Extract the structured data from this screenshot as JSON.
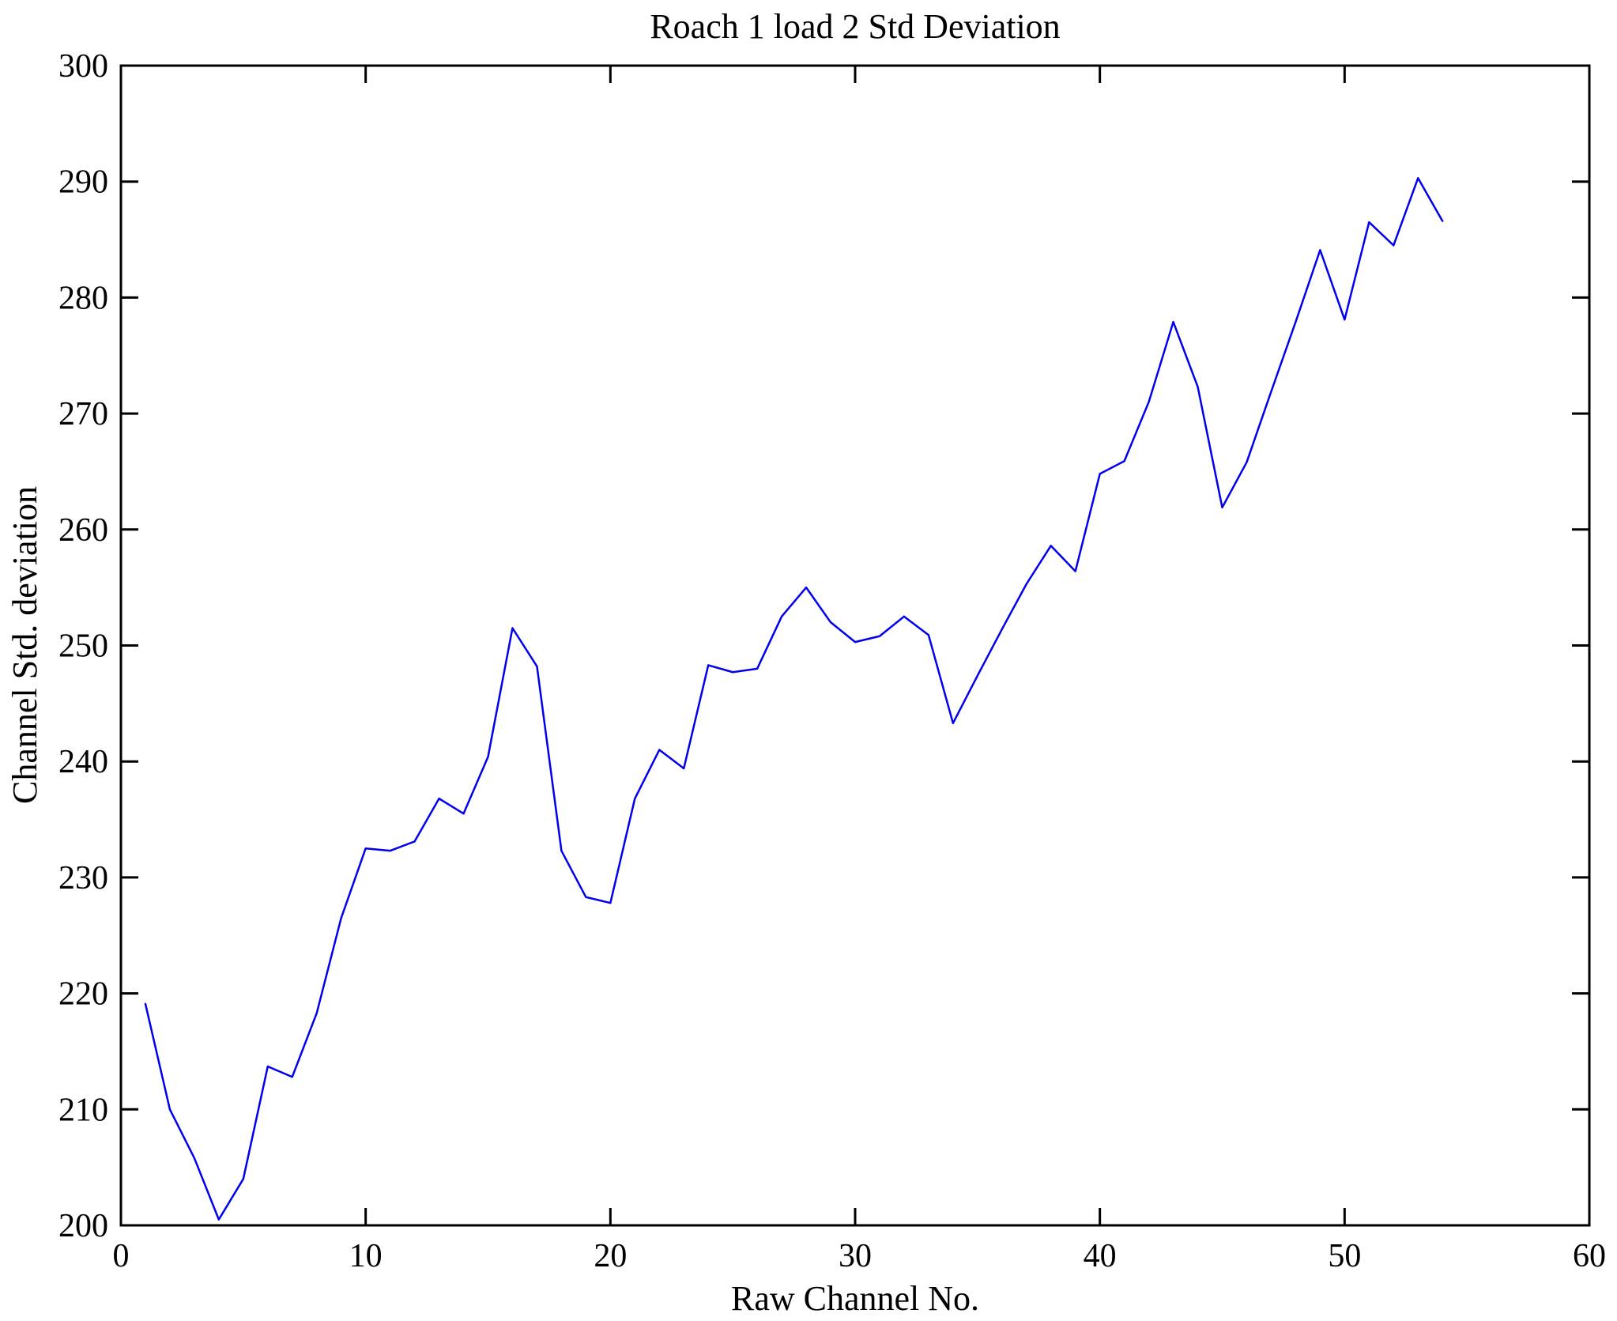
{
  "figure": {
    "background_color": "#ffffff",
    "line_color": "#0000ee",
    "axis_color": "#000000"
  },
  "chart_data": {
    "type": "line",
    "title": "Roach 1 load 2 Std Deviation",
    "xlabel": "Raw Channel No.",
    "ylabel": "Channel Std. deviation",
    "xlim": [
      0,
      60
    ],
    "ylim": [
      200,
      300
    ],
    "xticks": [
      0,
      10,
      20,
      30,
      40,
      50,
      60
    ],
    "yticks": [
      200,
      210,
      220,
      230,
      240,
      250,
      260,
      270,
      280,
      290,
      300
    ],
    "grid": false,
    "legend": "none",
    "series": [
      {
        "name": "channel-std-deviation",
        "color": "#0000ee",
        "x": [
          1,
          2,
          3,
          4,
          5,
          6,
          7,
          8,
          9,
          10,
          11,
          12,
          13,
          14,
          15,
          16,
          17,
          18,
          19,
          20,
          21,
          22,
          23,
          24,
          25,
          26,
          27,
          28,
          29,
          30,
          31,
          32,
          33,
          34,
          35,
          36,
          37,
          38,
          39,
          40,
          41,
          42,
          43,
          44,
          45,
          46,
          47,
          48,
          49,
          50,
          51,
          52,
          53,
          54
        ],
        "values": [
          219.1,
          210.0,
          205.8,
          200.5,
          204.0,
          213.7,
          212.8,
          218.3,
          226.5,
          232.5,
          232.3,
          233.1,
          236.8,
          235.5,
          240.4,
          251.5,
          248.2,
          232.3,
          228.3,
          227.8,
          236.8,
          241.0,
          239.4,
          248.3,
          247.7,
          248.0,
          252.5,
          255.0,
          252.0,
          250.3,
          250.8,
          252.5,
          250.9,
          243.3,
          247.4,
          251.4,
          255.3,
          258.6,
          256.4,
          264.8,
          265.9,
          271.0,
          277.9,
          272.3,
          261.9,
          265.8,
          271.9,
          277.9,
          284.1,
          278.1,
          286.5,
          284.5,
          290.3,
          286.6
        ]
      }
    ]
  }
}
